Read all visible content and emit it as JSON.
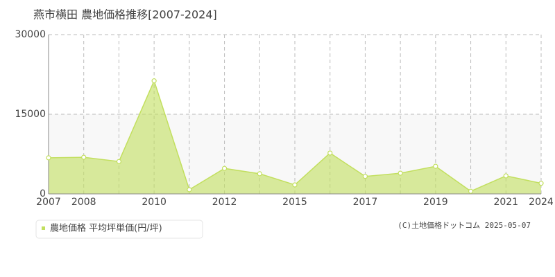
{
  "chart_data": {
    "type": "area",
    "title": "燕市横田 農地価格推移[2007-2024]",
    "categories": [
      "2007",
      "2008",
      null,
      "2010",
      null,
      "2012",
      null,
      "2015",
      null,
      "2017",
      null,
      "2019",
      null,
      "2021",
      "2024"
    ],
    "series": [
      {
        "name": "農地価格 平均坪単価(円/坪)",
        "color": "#c2df5e",
        "values": [
          6800,
          6900,
          6100,
          21300,
          800,
          4800,
          3800,
          1700,
          7700,
          3300,
          3900,
          5200,
          500,
          3400,
          2000
        ]
      }
    ],
    "ylim": [
      0,
      30000
    ],
    "yticks": [
      0,
      15000,
      30000
    ],
    "grid": true,
    "credit": "(C)土地価格ドットコム 2025-05-07"
  }
}
